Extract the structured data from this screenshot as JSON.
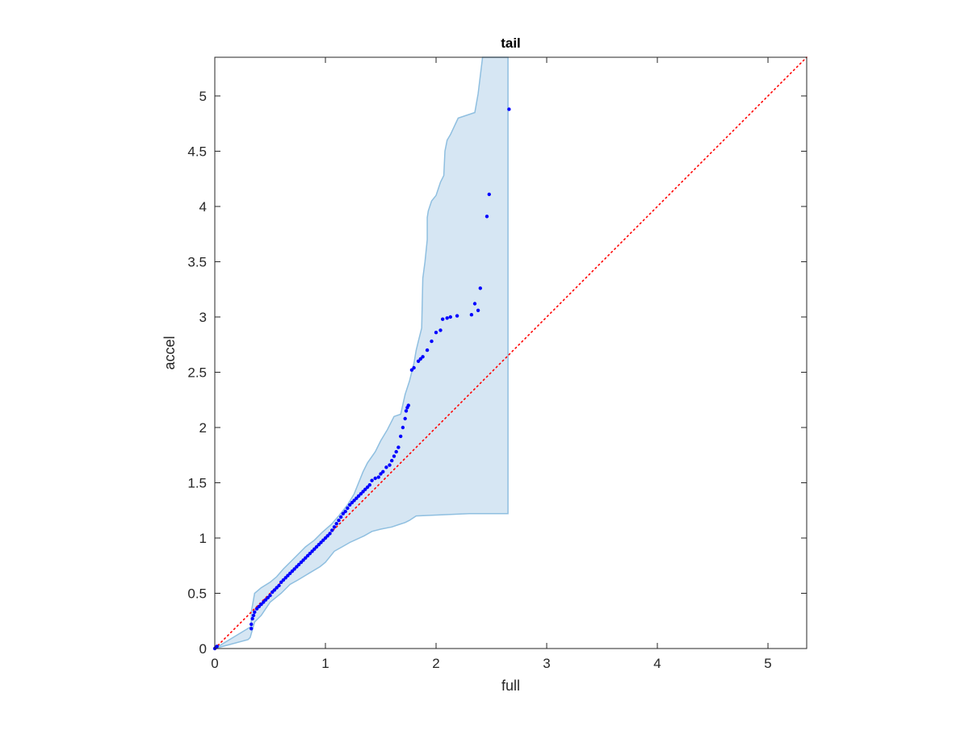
{
  "chart_data": {
    "type": "scatter",
    "title": "tail",
    "xlabel": "full",
    "ylabel": "accel",
    "xlim": [
      0,
      5.35
    ],
    "ylim": [
      0,
      5.35
    ],
    "x_ticks": [
      0,
      1,
      2,
      3,
      4,
      5
    ],
    "y_ticks": [
      0,
      0.5,
      1,
      1.5,
      2,
      2.5,
      3,
      3.5,
      4,
      4.5,
      5
    ],
    "x_tick_labels": [
      "0",
      "1",
      "2",
      "3",
      "4",
      "5"
    ],
    "y_tick_labels": [
      "0",
      "0.5",
      "1",
      "1.5",
      "2",
      "2.5",
      "3",
      "3.5",
      "4",
      "4.5",
      "5"
    ],
    "grid": false,
    "reference_line": {
      "style": "dotted",
      "color": "#ff0000",
      "x": [
        0,
        5.35
      ],
      "y": [
        0,
        5.35
      ]
    },
    "band": {
      "color": "#d6e6f3",
      "edge_color": "#8fbfe0",
      "upper": [
        [
          0,
          0
        ],
        [
          0.33,
          0.2
        ],
        [
          0.33,
          0.33
        ],
        [
          0.36,
          0.5
        ],
        [
          0.42,
          0.55
        ],
        [
          0.5,
          0.6
        ],
        [
          0.56,
          0.65
        ],
        [
          0.62,
          0.72
        ],
        [
          0.68,
          0.78
        ],
        [
          0.75,
          0.85
        ],
        [
          0.82,
          0.92
        ],
        [
          0.9,
          0.98
        ],
        [
          0.97,
          1.05
        ],
        [
          1.05,
          1.12
        ],
        [
          1.12,
          1.2
        ],
        [
          1.2,
          1.3
        ],
        [
          1.26,
          1.4
        ],
        [
          1.3,
          1.5
        ],
        [
          1.34,
          1.6
        ],
        [
          1.38,
          1.68
        ],
        [
          1.45,
          1.78
        ],
        [
          1.5,
          1.88
        ],
        [
          1.56,
          1.98
        ],
        [
          1.62,
          2.1
        ],
        [
          1.68,
          2.12
        ],
        [
          1.72,
          2.3
        ],
        [
          1.76,
          2.42
        ],
        [
          1.8,
          2.58
        ],
        [
          1.82,
          2.7
        ],
        [
          1.84,
          2.78
        ],
        [
          1.87,
          2.9
        ],
        [
          1.88,
          3.35
        ],
        [
          1.9,
          3.5
        ],
        [
          1.92,
          3.7
        ],
        [
          1.92,
          3.9
        ],
        [
          1.93,
          3.96
        ],
        [
          1.96,
          4.05
        ],
        [
          2.0,
          4.1
        ],
        [
          2.04,
          4.22
        ],
        [
          2.07,
          4.28
        ],
        [
          2.08,
          4.5
        ],
        [
          2.1,
          4.6
        ],
        [
          2.13,
          4.65
        ],
        [
          2.2,
          4.8
        ],
        [
          2.35,
          4.85
        ],
        [
          2.38,
          5.02
        ],
        [
          2.42,
          5.35
        ],
        [
          2.65,
          5.35
        ]
      ],
      "lower": [
        [
          2.65,
          1.22
        ],
        [
          2.3,
          1.22
        ],
        [
          1.82,
          1.2
        ],
        [
          1.76,
          1.16
        ],
        [
          1.72,
          1.14
        ],
        [
          1.66,
          1.12
        ],
        [
          1.6,
          1.1
        ],
        [
          1.5,
          1.08
        ],
        [
          1.42,
          1.06
        ],
        [
          1.35,
          1.02
        ],
        [
          1.22,
          0.96
        ],
        [
          1.15,
          0.92
        ],
        [
          1.08,
          0.88
        ],
        [
          1.0,
          0.78
        ],
        [
          0.95,
          0.74
        ],
        [
          0.85,
          0.68
        ],
        [
          0.75,
          0.62
        ],
        [
          0.68,
          0.58
        ],
        [
          0.6,
          0.5
        ],
        [
          0.5,
          0.42
        ],
        [
          0.42,
          0.3
        ],
        [
          0.36,
          0.24
        ],
        [
          0.32,
          0.1
        ],
        [
          0.3,
          0.08
        ],
        [
          0,
          0
        ]
      ]
    },
    "series": [
      {
        "color": "#0000ff",
        "x": [
          0,
          0.01,
          0.02,
          0.33,
          0.33,
          0.34,
          0.35,
          0.36,
          0.38,
          0.4,
          0.42,
          0.44,
          0.46,
          0.48,
          0.5,
          0.52,
          0.54,
          0.56,
          0.58,
          0.6,
          0.62,
          0.64,
          0.66,
          0.68,
          0.7,
          0.72,
          0.74,
          0.76,
          0.78,
          0.8,
          0.82,
          0.84,
          0.86,
          0.88,
          0.9,
          0.92,
          0.94,
          0.96,
          0.98,
          1.0,
          1.02,
          1.04,
          1.06,
          1.08,
          1.1,
          1.12,
          1.14,
          1.16,
          1.18,
          1.2,
          1.22,
          1.24,
          1.26,
          1.28,
          1.3,
          1.32,
          1.34,
          1.36,
          1.38,
          1.4,
          1.42,
          1.45,
          1.48,
          1.5,
          1.52,
          1.55,
          1.58,
          1.6,
          1.62,
          1.64,
          1.66,
          1.68,
          1.7,
          1.72,
          1.73,
          1.74,
          1.75,
          1.78,
          1.8,
          1.84,
          1.86,
          1.88,
          1.92,
          1.96,
          2.0,
          2.04,
          2.06,
          2.1,
          2.13,
          2.19,
          2.32,
          2.35,
          2.38,
          2.4,
          2.46,
          2.48,
          2.66
        ],
        "y": [
          0,
          0.01,
          0.02,
          0.18,
          0.22,
          0.27,
          0.3,
          0.33,
          0.36,
          0.38,
          0.4,
          0.42,
          0.44,
          0.46,
          0.48,
          0.51,
          0.53,
          0.55,
          0.57,
          0.6,
          0.62,
          0.64,
          0.66,
          0.68,
          0.7,
          0.72,
          0.74,
          0.76,
          0.78,
          0.8,
          0.82,
          0.84,
          0.86,
          0.88,
          0.9,
          0.92,
          0.94,
          0.96,
          0.98,
          1.0,
          1.02,
          1.04,
          1.07,
          1.1,
          1.13,
          1.16,
          1.19,
          1.22,
          1.24,
          1.27,
          1.3,
          1.32,
          1.34,
          1.36,
          1.38,
          1.4,
          1.42,
          1.44,
          1.46,
          1.48,
          1.52,
          1.54,
          1.55,
          1.58,
          1.6,
          1.64,
          1.66,
          1.7,
          1.74,
          1.78,
          1.82,
          1.92,
          2.0,
          2.08,
          2.15,
          2.18,
          2.2,
          2.52,
          2.54,
          2.6,
          2.62,
          2.64,
          2.7,
          2.78,
          2.86,
          2.88,
          2.98,
          2.99,
          3.0,
          3.01,
          3.02,
          3.12,
          3.06,
          3.26,
          3.91,
          4.11,
          4.88
        ]
      }
    ]
  }
}
